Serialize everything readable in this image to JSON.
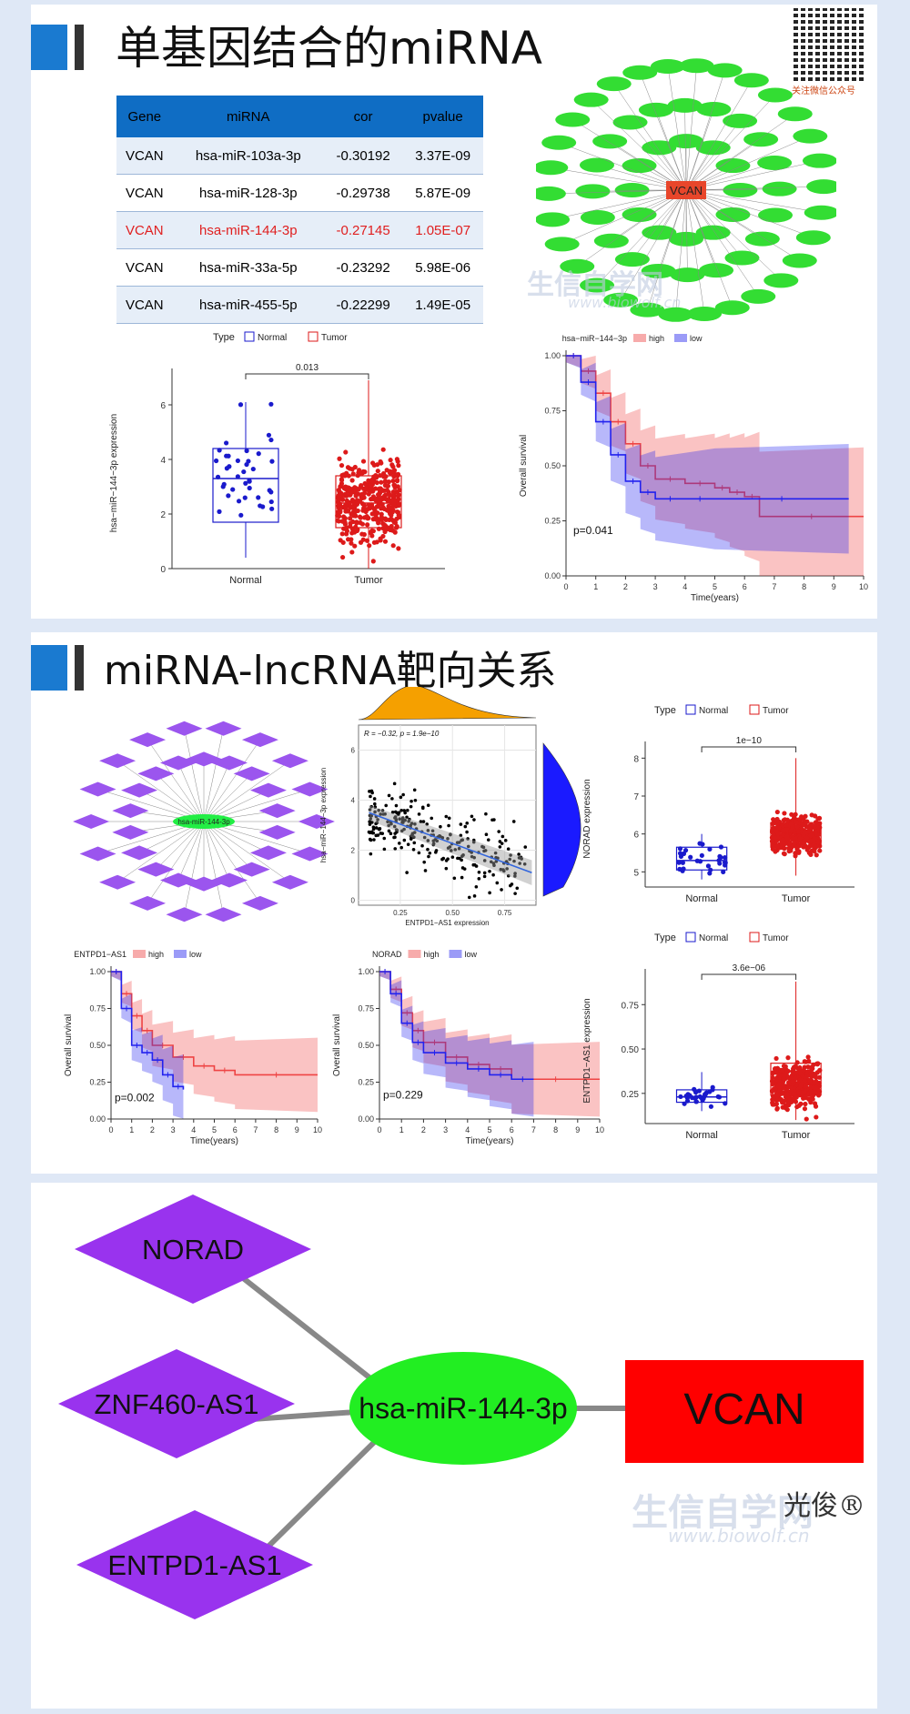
{
  "section1": {
    "title": "单基因结合的miRNA",
    "qr_caption": "关注微信公众号",
    "table": {
      "headers": [
        "Gene",
        "miRNA",
        "cor",
        "pvalue"
      ],
      "rows": [
        [
          "VCAN",
          "hsa-miR-103a-3p",
          "-0.30192",
          "3.37E-09"
        ],
        [
          "VCAN",
          "hsa-miR-128-3p",
          "-0.29738",
          "5.87E-09"
        ],
        [
          "VCAN",
          "hsa-miR-144-3p",
          "-0.27145",
          "1.05E-07"
        ],
        [
          "VCAN",
          "hsa-miR-33a-5p",
          "-0.23292",
          "5.98E-06"
        ],
        [
          "VCAN",
          "hsa-miR-455-5p",
          "-0.22299",
          "1.49E-05"
        ]
      ],
      "highlight_row": 2
    },
    "network": {
      "center": "VCAN",
      "center_color": "#e8462b",
      "node_color": "#33dd33"
    },
    "watermark": "生信自学网",
    "watermark_url": "www.biowolf.cn"
  },
  "section2": {
    "title": "miRNA-lncRNA靶向关系"
  },
  "section3": {
    "network": {
      "lncrnas": [
        "NORAD",
        "ZNF460-AS1",
        "ENTPD1-AS1"
      ],
      "mirna": "hsa-miR-144-3p",
      "gene": "VCAN",
      "lncrna_color": "#9933ee",
      "mirna_color": "#22ee22",
      "gene_color": "#ff0000"
    },
    "signature": "光俊®"
  },
  "chart_data": [
    {
      "id": "box-mir144",
      "type": "box",
      "legend": {
        "title": "Type",
        "items": [
          "Normal",
          "Tumor"
        ],
        "colors": [
          "#1a1acc",
          "#dd1a1a"
        ]
      },
      "ylabel": "hsa−miR−144−3p expression",
      "categories": [
        "Normal",
        "Tumor"
      ],
      "yticks": [
        0,
        2,
        4,
        6
      ],
      "ylim": [
        0,
        7
      ],
      "boxes": [
        {
          "name": "Normal",
          "q1": 1.7,
          "median": 3.3,
          "q3": 4.4,
          "min": 0.4,
          "max": 6.1
        },
        {
          "name": "Tumor",
          "q1": 1.5,
          "median": 2.4,
          "q3": 3.4,
          "min": 0.0,
          "max": 6.9
        }
      ],
      "pvalue": "0.013"
    },
    {
      "id": "km-mir144",
      "type": "line",
      "legend": {
        "title": "hsa−miR−144−3p",
        "items": [
          "high",
          "low"
        ],
        "colors": [
          "#ee4444",
          "#2222ee"
        ]
      },
      "xlabel": "Time(years)",
      "ylabel": "Overall survival",
      "xticks": [
        0,
        1,
        2,
        3,
        4,
        5,
        6,
        7,
        8,
        9,
        10
      ],
      "yticks": [
        "0.00",
        "0.25",
        "0.50",
        "0.75",
        "1.00"
      ],
      "xlim": [
        0,
        10
      ],
      "ylim": [
        0,
        1
      ],
      "series": [
        {
          "name": "high",
          "x": [
            0,
            0.5,
            1,
            1.5,
            2,
            2.5,
            3,
            4,
            5,
            5.5,
            6,
            6.5,
            10
          ],
          "y": [
            1,
            0.93,
            0.83,
            0.7,
            0.6,
            0.5,
            0.44,
            0.42,
            0.4,
            0.38,
            0.36,
            0.27,
            0.27
          ]
        },
        {
          "name": "low",
          "x": [
            0,
            0.5,
            1,
            1.5,
            2,
            2.5,
            3,
            4,
            5,
            9.5
          ],
          "y": [
            1,
            0.88,
            0.7,
            0.55,
            0.43,
            0.38,
            0.35,
            0.35,
            0.35,
            0.35
          ]
        }
      ],
      "pvalue": "p=0.041"
    },
    {
      "id": "scatter-corr",
      "type": "scatter",
      "xlabel": "ENTPD1−AS1 expression",
      "ylabel": "hsa−miR−144−3p expression",
      "annotation": "R = −0.32, p = 1.9e−10",
      "xticks": [
        "0.25",
        "0.50",
        "0.75"
      ],
      "yticks": [
        0,
        2,
        4,
        6
      ],
      "xlim": [
        0.05,
        0.9
      ],
      "ylim": [
        -0.2,
        7
      ],
      "fit": {
        "x": [
          0.1,
          0.88
        ],
        "y": [
          3.5,
          1.1
        ]
      }
    },
    {
      "id": "box-norad",
      "type": "box",
      "legend": {
        "title": "Type",
        "items": [
          "Normal",
          "Tumor"
        ],
        "colors": [
          "#1a1acc",
          "#dd1a1a"
        ]
      },
      "ylabel": "NORAD expression",
      "categories": [
        "Normal",
        "Tumor"
      ],
      "yticks": [
        5,
        6,
        7,
        8
      ],
      "ylim": [
        4.6,
        8.2
      ],
      "boxes": [
        {
          "name": "Normal",
          "q1": 5.05,
          "median": 5.3,
          "q3": 5.65,
          "min": 4.8,
          "max": 6.0
        },
        {
          "name": "Tumor",
          "q1": 5.65,
          "median": 5.95,
          "q3": 6.3,
          "min": 4.9,
          "max": 8.0
        }
      ],
      "pvalue": "1e−10"
    },
    {
      "id": "km-entpd1",
      "type": "line",
      "legend": {
        "title": "ENTPD1−AS1",
        "items": [
          "high",
          "low"
        ],
        "colors": [
          "#ee4444",
          "#2222ee"
        ]
      },
      "xlabel": "Time(years)",
      "ylabel": "Overall survival",
      "xticks": [
        0,
        1,
        2,
        3,
        4,
        5,
        6,
        7,
        8,
        9,
        10
      ],
      "yticks": [
        "0.00",
        "0.25",
        "0.50",
        "0.75",
        "1.00"
      ],
      "xlim": [
        0,
        10
      ],
      "ylim": [
        0,
        1
      ],
      "series": [
        {
          "name": "high",
          "x": [
            0,
            0.5,
            1,
            1.5,
            2,
            3,
            4,
            5,
            6,
            10
          ],
          "y": [
            1,
            0.85,
            0.7,
            0.6,
            0.5,
            0.42,
            0.36,
            0.33,
            0.3,
            0.3
          ]
        },
        {
          "name": "low",
          "x": [
            0,
            0.5,
            1,
            1.5,
            2,
            2.5,
            3,
            3.5
          ],
          "y": [
            1,
            0.75,
            0.5,
            0.45,
            0.4,
            0.3,
            0.22,
            0.2
          ]
        }
      ],
      "pvalue": "p=0.002"
    },
    {
      "id": "km-norad",
      "type": "line",
      "legend": {
        "title": "NORAD",
        "items": [
          "high",
          "low"
        ],
        "colors": [
          "#ee4444",
          "#2222ee"
        ]
      },
      "xlabel": "Time(years)",
      "ylabel": "Overall survival",
      "xticks": [
        0,
        1,
        2,
        3,
        4,
        5,
        6,
        7,
        8,
        9,
        10
      ],
      "yticks": [
        "0.00",
        "0.25",
        "0.50",
        "0.75",
        "1.00"
      ],
      "xlim": [
        0,
        10
      ],
      "ylim": [
        0,
        1
      ],
      "series": [
        {
          "name": "high",
          "x": [
            0,
            0.5,
            1,
            1.5,
            2,
            3,
            4,
            5,
            6,
            10
          ],
          "y": [
            1,
            0.88,
            0.72,
            0.6,
            0.52,
            0.42,
            0.37,
            0.34,
            0.27,
            0.27
          ]
        },
        {
          "name": "low",
          "x": [
            0,
            0.5,
            1,
            1.5,
            2,
            3,
            4,
            5,
            6,
            7
          ],
          "y": [
            1,
            0.85,
            0.65,
            0.52,
            0.45,
            0.38,
            0.34,
            0.3,
            0.27,
            0.27
          ]
        }
      ],
      "pvalue": "p=0.229"
    },
    {
      "id": "box-entpd1",
      "type": "box",
      "legend": {
        "title": "Type",
        "items": [
          "Normal",
          "Tumor"
        ],
        "colors": [
          "#1a1acc",
          "#dd1a1a"
        ]
      },
      "ylabel": "ENTPD1−AS1 expression",
      "categories": [
        "Normal",
        "Tumor"
      ],
      "yticks": [
        "0.25",
        "0.50",
        "0.75"
      ],
      "ylim": [
        0.08,
        0.9
      ],
      "boxes": [
        {
          "name": "Normal",
          "q1": 0.2,
          "median": 0.23,
          "q3": 0.27,
          "min": 0.15,
          "max": 0.37
        },
        {
          "name": "Tumor",
          "q1": 0.24,
          "median": 0.3,
          "q3": 0.42,
          "min": 0.1,
          "max": 0.88
        }
      ],
      "pvalue": "3.6e−06"
    }
  ]
}
